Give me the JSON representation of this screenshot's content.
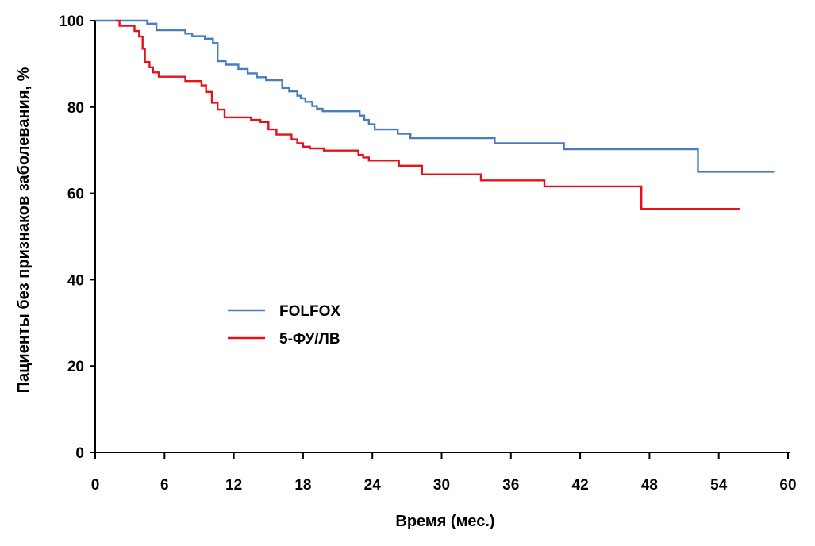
{
  "chart_data": {
    "type": "line",
    "step": true,
    "xlabel": "Время (мес.)",
    "ylabel": "Пациенты без признаков заболевания, %",
    "xlim": [
      0,
      60
    ],
    "ylim": [
      0,
      100
    ],
    "xticks": [
      0,
      6,
      12,
      18,
      24,
      30,
      36,
      42,
      48,
      54,
      60
    ],
    "yticks": [
      0,
      20,
      40,
      60,
      80,
      100
    ],
    "grid": false,
    "legend_position": "center-left",
    "series": [
      {
        "name": "FOLFOX",
        "color": "#4a7ebb",
        "x": [
          0,
          4.5,
          5.3,
          7.8,
          8.4,
          9.5,
          10.2,
          10.6,
          11.3,
          12.4,
          13.2,
          14,
          14.8,
          16.2,
          16.8,
          17.5,
          17.8,
          18.2,
          18.8,
          19.2,
          19.7,
          20.4,
          22.9,
          23.3,
          23.7,
          24.2,
          26.2,
          27.3,
          34.6,
          40.6,
          52.2,
          58.8
        ],
        "y": [
          100,
          99.3,
          97.8,
          97,
          96.4,
          95.8,
          94.8,
          90.6,
          89.8,
          88.8,
          87.8,
          86.9,
          86.2,
          84.4,
          83.6,
          82.6,
          82,
          81.2,
          80.2,
          79.6,
          79,
          79,
          78,
          77,
          76,
          74.8,
          73.8,
          72.8,
          71.6,
          70.2,
          65,
          65
        ]
      },
      {
        "name": "5-ФУ/ЛВ",
        "color": "#e8111a",
        "x": [
          1.8,
          2.1,
          3.4,
          3.8,
          4.1,
          4.3,
          4.7,
          5.0,
          5.5,
          7.8,
          9.2,
          9.6,
          10.1,
          10.6,
          11.2,
          13.5,
          14.3,
          15.0,
          15.7,
          17.0,
          17.5,
          18.0,
          18.6,
          19.8,
          22.8,
          23.2,
          23.7,
          26.3,
          28.3,
          33.4,
          38.9,
          47.3,
          55.8
        ],
        "y": [
          100,
          98.8,
          97.6,
          96.3,
          93.5,
          90.4,
          89.2,
          88,
          87,
          86,
          85,
          83.5,
          81,
          79.4,
          77.6,
          77,
          76.5,
          74.8,
          73.6,
          72.5,
          71.6,
          70.8,
          70.4,
          69.9,
          68.9,
          68.3,
          67.6,
          66.4,
          64.4,
          63,
          61.6,
          56.4,
          56.4
        ]
      }
    ]
  }
}
